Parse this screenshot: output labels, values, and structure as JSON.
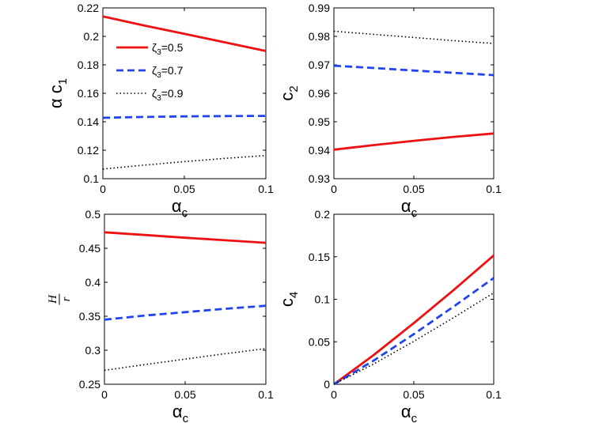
{
  "figure": {
    "alt": "Four-panel line plot of coefficients versus alpha_c"
  },
  "legend": {
    "entries": [
      {
        "symbol": "ζ",
        "sub": "3",
        "text": "=0.5",
        "color": "#ee1111",
        "dash": "solid"
      },
      {
        "symbol": "ζ",
        "sub": "3",
        "text": "=0.7",
        "color": "#2244ee",
        "dash": "dashed"
      },
      {
        "symbol": "ζ",
        "sub": "3",
        "text": "=0.9",
        "color": "#000000",
        "dash": "dotted"
      }
    ]
  },
  "chart_data": [
    {
      "type": "line",
      "panel": "top-left",
      "xlabel": {
        "main": "α",
        "sub": "c"
      },
      "ylabel": {
        "main": "α c",
        "sub": "1"
      },
      "xlim": [
        0,
        0.1
      ],
      "ylim": [
        0.1,
        0.22
      ],
      "xticks": [
        "0",
        "0.05",
        "0.1"
      ],
      "yticks": [
        "0.1",
        "0.12",
        "0.14",
        "0.16",
        "0.18",
        "0.2",
        "0.22"
      ],
      "series": [
        {
          "name": "ζ3=0.5",
          "color": "#ee1111",
          "dash": "solid",
          "x": [
            0,
            0.025,
            0.05,
            0.075,
            0.1
          ],
          "y": [
            0.214,
            0.2077,
            0.2018,
            0.1958,
            0.1897
          ]
        },
        {
          "name": "ζ3=0.7",
          "color": "#2244ee",
          "dash": "dashed",
          "x": [
            0,
            0.025,
            0.05,
            0.075,
            0.1
          ],
          "y": [
            0.1428,
            0.1434,
            0.1438,
            0.144,
            0.1441
          ]
        },
        {
          "name": "ζ3=0.9",
          "color": "#000000",
          "dash": "dotted",
          "x": [
            0,
            0.025,
            0.05,
            0.075,
            0.1
          ],
          "y": [
            0.1068,
            0.1095,
            0.112,
            0.1143,
            0.1163
          ]
        }
      ]
    },
    {
      "type": "line",
      "panel": "top-right",
      "xlabel": {
        "main": "α",
        "sub": "c"
      },
      "ylabel": {
        "main": "c",
        "sub": "2"
      },
      "xlim": [
        0,
        0.1
      ],
      "ylim": [
        0.93,
        0.99
      ],
      "xticks": [
        "0",
        "0.05",
        "0.1"
      ],
      "yticks": [
        "0.93",
        "0.94",
        "0.95",
        "0.96",
        "0.97",
        "0.98",
        "0.99"
      ],
      "series": [
        {
          "name": "ζ3=0.5",
          "color": "#ee1111",
          "dash": "solid",
          "x": [
            0,
            0.025,
            0.05,
            0.075,
            0.1
          ],
          "y": [
            0.9402,
            0.9418,
            0.9433,
            0.9447,
            0.9459
          ]
        },
        {
          "name": "ζ3=0.7",
          "color": "#2244ee",
          "dash": "dashed",
          "x": [
            0,
            0.025,
            0.05,
            0.075,
            0.1
          ],
          "y": [
            0.9697,
            0.9689,
            0.968,
            0.9672,
            0.9664
          ]
        },
        {
          "name": "ζ3=0.9",
          "color": "#000000",
          "dash": "dotted",
          "x": [
            0,
            0.025,
            0.05,
            0.075,
            0.1
          ],
          "y": [
            0.9818,
            0.9807,
            0.9796,
            0.9785,
            0.9775
          ]
        }
      ]
    },
    {
      "type": "line",
      "panel": "bottom-left",
      "xlabel": {
        "main": "α",
        "sub": "c"
      },
      "ylabel": {
        "num": "H",
        "den": "r"
      },
      "xlim": [
        0,
        0.1
      ],
      "ylim": [
        0.25,
        0.5
      ],
      "xticks": [
        "0",
        "0.05",
        "0.1"
      ],
      "yticks": [
        "0.25",
        "0.3",
        "0.35",
        "0.4",
        "0.45",
        "0.5"
      ],
      "series": [
        {
          "name": "ζ3=0.5",
          "color": "#ee1111",
          "dash": "solid",
          "x": [
            0,
            0.025,
            0.05,
            0.075,
            0.1
          ],
          "y": [
            0.4735,
            0.4695,
            0.4655,
            0.4617,
            0.458
          ]
        },
        {
          "name": "ζ3=0.7",
          "color": "#2244ee",
          "dash": "dashed",
          "x": [
            0,
            0.025,
            0.05,
            0.075,
            0.1
          ],
          "y": [
            0.345,
            0.351,
            0.356,
            0.361,
            0.3655
          ]
        },
        {
          "name": "ζ3=0.9",
          "color": "#000000",
          "dash": "dotted",
          "x": [
            0,
            0.025,
            0.05,
            0.075,
            0.1
          ],
          "y": [
            0.2705,
            0.279,
            0.287,
            0.295,
            0.3025
          ]
        }
      ]
    },
    {
      "type": "line",
      "panel": "bottom-right",
      "xlabel": {
        "main": "α",
        "sub": "c"
      },
      "ylabel": {
        "main": "c",
        "sub": "4"
      },
      "xlim": [
        0,
        0.1
      ],
      "ylim": [
        0,
        0.2
      ],
      "xticks": [
        "0",
        "0.05",
        "0.1"
      ],
      "yticks": [
        "0",
        "0.05",
        "0.1",
        "0.15",
        "0.2"
      ],
      "series": [
        {
          "name": "ζ3=0.5",
          "color": "#ee1111",
          "dash": "solid",
          "x": [
            0,
            0.025,
            0.05,
            0.075,
            0.1
          ],
          "y": [
            0,
            0.0345,
            0.072,
            0.111,
            0.1515
          ]
        },
        {
          "name": "ζ3=0.7",
          "color": "#2244ee",
          "dash": "dashed",
          "x": [
            0,
            0.025,
            0.05,
            0.075,
            0.1
          ],
          "y": [
            0,
            0.028,
            0.059,
            0.0915,
            0.125
          ]
        },
        {
          "name": "ζ3=0.9",
          "color": "#000000",
          "dash": "dotted",
          "x": [
            0,
            0.025,
            0.05,
            0.075,
            0.1
          ],
          "y": [
            0,
            0.024,
            0.0505,
            0.0785,
            0.1075
          ]
        }
      ]
    }
  ]
}
